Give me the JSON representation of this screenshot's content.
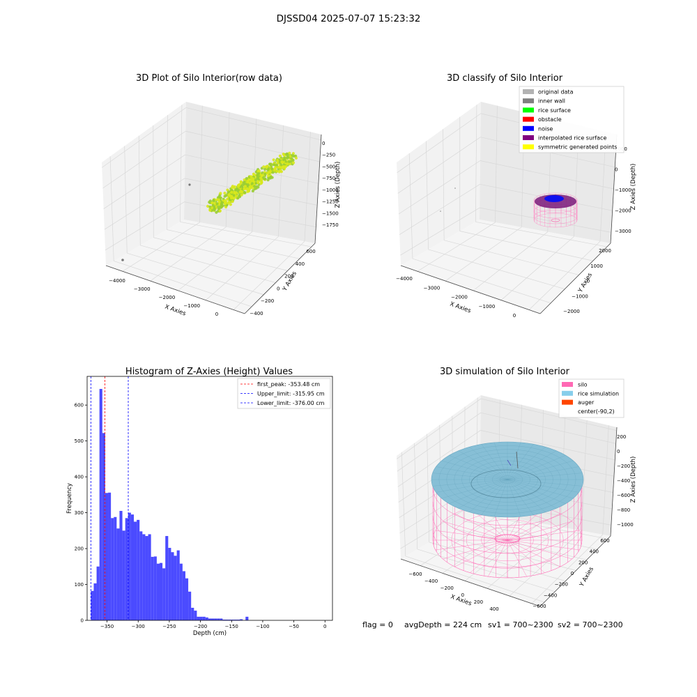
{
  "suptitle": "DJSSD04 2025-07-07 15:23:32",
  "footer": {
    "flag": "flag = 0",
    "avg_depth": "avgDepth = 224 cm",
    "sv1": "sv1 = 700~2300",
    "sv2": "sv2 = 700~2300"
  },
  "chart_data": [
    {
      "type": "scatter",
      "projection": "3d",
      "title": "3D Plot of Silo Interior(row data)",
      "xlabel": "X Axies",
      "ylabel": "Y Axies",
      "zlabel": "Z Axies (Depth)",
      "x_ticks": [
        "−4000",
        "−3000",
        "−2000",
        "−1000",
        "0"
      ],
      "y_ticks": [
        "−400",
        "−200",
        "0",
        "200",
        "400",
        "600"
      ],
      "z_ticks": [
        "0",
        "−250",
        "−500",
        "−750",
        "−1000",
        "−1250",
        "−1500",
        "−1750"
      ],
      "grid": true,
      "colors": {
        "points_low": "#9ACD32",
        "points_high": "#D8E81C",
        "outlier": "#777777"
      }
    },
    {
      "type": "scatter",
      "projection": "3d",
      "title": "3D classify of Silo Interior",
      "xlabel": "X Axies",
      "ylabel": "Y Axies",
      "zlabel": "Z Axies (Depth)",
      "x_ticks": [
        "−4000",
        "−3000",
        "−2000",
        "−1000",
        "0"
      ],
      "y_ticks": [
        "−2000",
        "−1000",
        "0",
        "1000",
        "2000"
      ],
      "z_ticks": [
        "1000",
        "0",
        "−1000",
        "−2000",
        "−3000"
      ],
      "grid": true,
      "legend_placement": "top-right",
      "legend": [
        {
          "label": "original data",
          "color": "#b3b3b3"
        },
        {
          "label": "inner wall",
          "color": "#808080"
        },
        {
          "label": "rice surface",
          "color": "#00ff00"
        },
        {
          "label": "obstacle",
          "color": "#ff0000"
        },
        {
          "label": "noise",
          "color": "#0000ff"
        },
        {
          "label": "interpolated rice surface",
          "color": "#800080"
        },
        {
          "label": "symmetric generated points",
          "color": "#ffff00"
        }
      ]
    },
    {
      "type": "bar",
      "title": "Histogram of Z-Axies (Height) Values",
      "xlabel": "Depth (cm)",
      "ylabel": "Frequency",
      "xlim": [
        -382,
        12
      ],
      "ylim": [
        0,
        680
      ],
      "x_ticks": [
        -350,
        -300,
        -250,
        -200,
        -150,
        -100,
        -50,
        0
      ],
      "x_tick_labels": [
        "−350",
        "−300",
        "−250",
        "−200",
        "−150",
        "−100",
        "−50",
        "0"
      ],
      "y_ticks": [
        0,
        100,
        200,
        300,
        400,
        500,
        600
      ],
      "bin_width": 4.6,
      "bin_start": -376,
      "values": [
        82,
        103,
        150,
        645,
        522,
        355,
        356,
        285,
        288,
        256,
        305,
        250,
        285,
        300,
        295,
        275,
        280,
        248,
        240,
        235,
        240,
        177,
        178,
        158,
        160,
        145,
        235,
        202,
        190,
        180,
        195,
        158,
        137,
        117,
        80,
        35,
        27,
        10,
        10,
        10,
        8,
        5,
        5,
        5,
        5,
        5,
        2,
        2,
        2,
        2,
        2,
        2,
        3,
        0,
        10
      ],
      "bar_color": "#4b4bff",
      "lines": [
        {
          "label": "first_peak: -353.48 cm",
          "x": -353.48,
          "color": "#ff0000"
        },
        {
          "label": "Upper_limit: -315.95 cm",
          "x": -315.95,
          "color": "#0000ff"
        },
        {
          "label": "Lower_limit: -376.00 cm",
          "x": -376.0,
          "color": "#0000ff"
        }
      ],
      "legend_placement": "top-right"
    },
    {
      "type": "scatter",
      "projection": "3d",
      "title": "3D simulation of Silo Interior",
      "xlabel": "X Axies",
      "ylabel": "Y Axies",
      "zlabel": "Z Axies (Depth)",
      "x_ticks": [
        "−600",
        "−400",
        "−200",
        "0",
        "200",
        "400"
      ],
      "y_ticks": [
        "−600",
        "−400",
        "−200",
        "0",
        "200",
        "400",
        "600"
      ],
      "z_ticks": [
        "200",
        "0",
        "−200",
        "−400",
        "−600",
        "−800",
        "−1000"
      ],
      "grid": true,
      "legend_placement": "top-right",
      "legend": [
        {
          "label": "silo",
          "color": "#ff69b4"
        },
        {
          "label": "rice simulation",
          "color": "#87ceeb"
        },
        {
          "label": "auger",
          "color": "#ff4500"
        },
        {
          "label": "center(-90,2)",
          "color": "#ffffff"
        }
      ]
    }
  ]
}
